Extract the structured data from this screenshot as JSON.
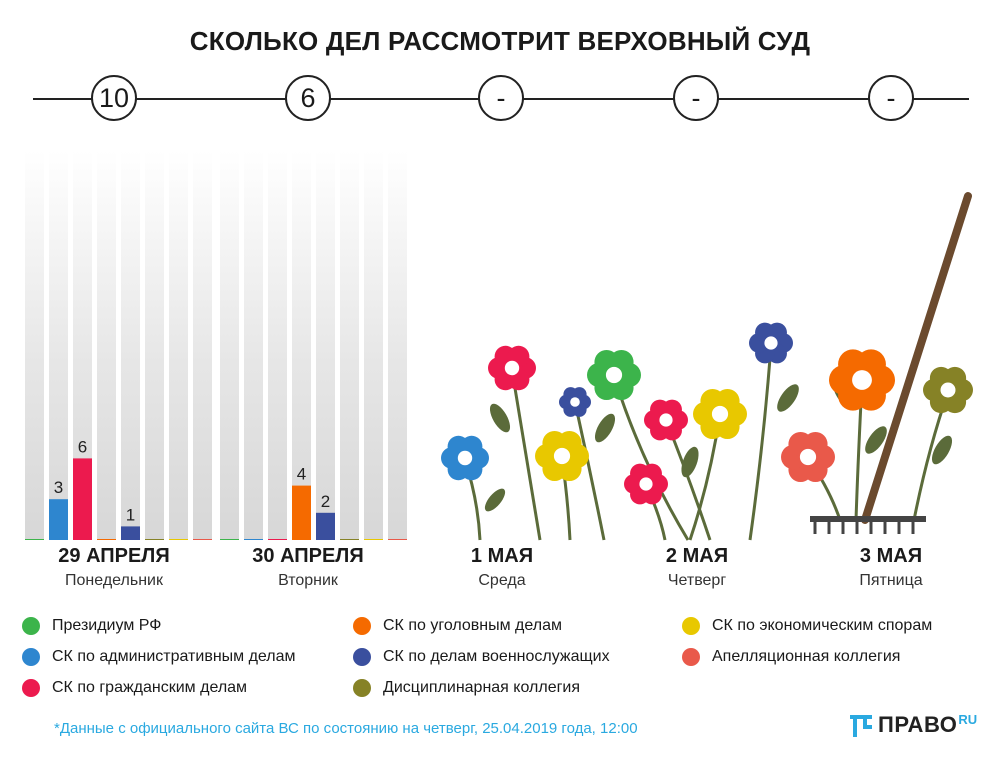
{
  "title": "СКОЛЬКО ДЕЛ РАССМОТРИТ ВЕРХОВНЫЙ СУД",
  "days": [
    {
      "count": "10",
      "date": "29 АПРЕЛЯ",
      "weekday": "Понедельник"
    },
    {
      "count": "6",
      "date": "30 АПРЕЛЯ",
      "weekday": "Вторник"
    },
    {
      "count": "-",
      "date": "1 МАЯ",
      "weekday": "Среда"
    },
    {
      "count": "-",
      "date": "2 МАЯ",
      "weekday": "Четверг"
    },
    {
      "count": "-",
      "date": "3 МАЯ",
      "weekday": "Пятница"
    }
  ],
  "legend": [
    {
      "label": "Президиум РФ",
      "color": "#3cb44b"
    },
    {
      "label": "СК по уголовным делам",
      "color": "#f56a00"
    },
    {
      "label": "СК по экономическим спорам",
      "color": "#e8c800"
    },
    {
      "label": "СК по административным делам",
      "color": "#2e86cf"
    },
    {
      "label": "СК по делам военнослужащих",
      "color": "#3a4f9e"
    },
    {
      "label": "Апелляционная коллегия",
      "color": "#e9594a"
    },
    {
      "label": "СК по гражданским делам",
      "color": "#ec1a4e"
    },
    {
      "label": "Дисциплинарная коллегия",
      "color": "#868226"
    }
  ],
  "chart_data": [
    {
      "type": "bar",
      "title": "29 АПРЕЛЯ",
      "categories": [
        "Президиум РФ",
        "СК по административным делам",
        "СК по гражданским делам",
        "СК по уголовным делам",
        "СК по делам военнослужащих",
        "Дисциплинарная коллегия",
        "СК по экономическим спорам",
        "Апелляционная коллегия"
      ],
      "values": [
        0,
        3,
        6,
        0,
        1,
        0,
        0,
        0
      ],
      "colors": [
        "#3cb44b",
        "#2e86cf",
        "#ec1a4e",
        "#f56a00",
        "#3a4f9e",
        "#868226",
        "#e8c800",
        "#e9594a"
      ],
      "ylim": [
        0,
        23
      ]
    },
    {
      "type": "bar",
      "title": "30 АПРЕЛЯ",
      "categories": [
        "Президиум РФ",
        "СК по административным делам",
        "СК по гражданским делам",
        "СК по уголовным делам",
        "СК по делам военнослужащих",
        "Дисциплинарная коллегия",
        "СК по экономическим спорам",
        "Апелляционная коллегия"
      ],
      "values": [
        0,
        0,
        0,
        4,
        2,
        0,
        0,
        0
      ],
      "colors": [
        "#3cb44b",
        "#2e86cf",
        "#ec1a4e",
        "#f56a00",
        "#3a4f9e",
        "#868226",
        "#e8c800",
        "#e9594a"
      ],
      "ylim": [
        0,
        23
      ]
    }
  ],
  "footnote": "*Данные с официального сайта ВС по состоянию на четверг, 25.04.2019 года, 12:00",
  "logo": {
    "brand": "ПРАВО",
    "suffix": "RU"
  }
}
